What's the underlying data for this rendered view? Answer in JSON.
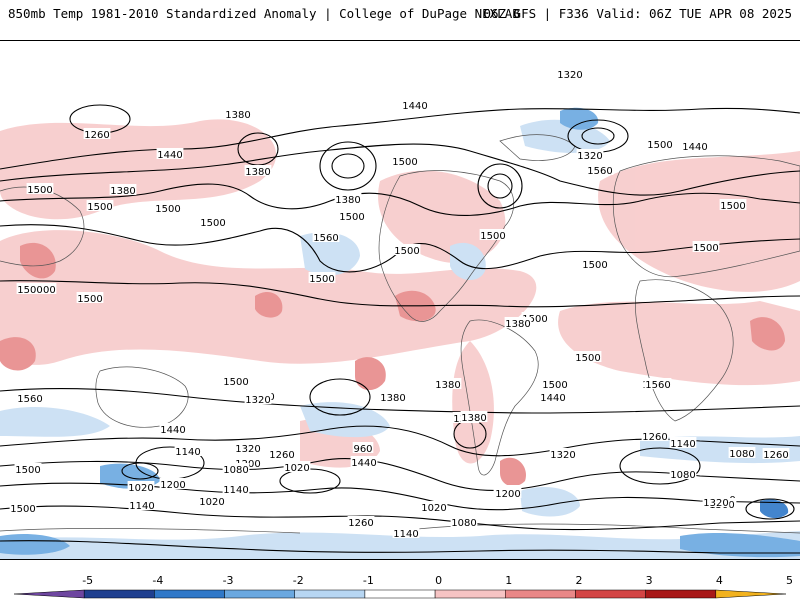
{
  "header": {
    "title": "850mb Temp 1981-2010 Standardized Anomaly | College of DuPage NEXLAB",
    "run_info": "06Z GFS | F336 Valid: 06Z TUE APR 08 2025"
  },
  "colorbar": {
    "ticks": [
      "-5",
      "-4",
      "-3",
      "-2",
      "-1",
      "0",
      "1",
      "2",
      "3",
      "4",
      "5"
    ],
    "colors": [
      "#6e46a0",
      "#1f3f8f",
      "#2f78c8",
      "#6aa8e0",
      "#b7d6f2",
      "#ffffff",
      "#f6c4c4",
      "#e98787",
      "#d34545",
      "#a81818",
      "#f2b21e"
    ]
  },
  "contour_labels": [
    "1320",
    "1440",
    "1380",
    "1260",
    "1320",
    "1440",
    "1380",
    "1500",
    "1380",
    "1500",
    "1500",
    "1500",
    "1500",
    "1380",
    "1500",
    "1560",
    "1500",
    "1560",
    "1500",
    "1440",
    "1500",
    "1500",
    "1500",
    "1500",
    "1500",
    "1500",
    "1500",
    "1500",
    "1500",
    "1500",
    "1380",
    "1500",
    "1560",
    "1440",
    "1320",
    "1260",
    "1380",
    "1380",
    "1500",
    "1440",
    "1320",
    "1260",
    "1200",
    "1140",
    "1080",
    "1020",
    "960",
    "1440",
    "1320",
    "1380",
    "1260",
    "1140",
    "1080",
    "1020",
    "1200",
    "1140",
    "1020",
    "1080",
    "1260",
    "1200",
    "1140",
    "1080",
    "1020",
    "1080",
    "1140",
    "1260",
    "1200",
    "1320",
    "1560",
    "1380",
    "1500",
    "1500",
    "1500",
    "1500",
    "1320"
  ]
}
